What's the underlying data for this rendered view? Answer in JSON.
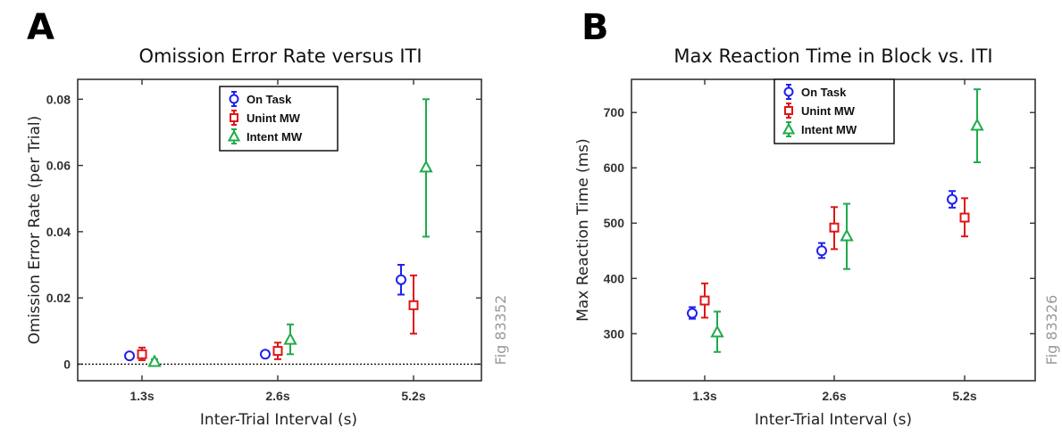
{
  "chart_data": [
    {
      "type": "scatter",
      "panel_label": "A",
      "title": "Omission Error Rate versus ITI",
      "xlabel": "Inter-Trial Interval (s)",
      "ylabel": "Omission Error Rate (per Trial)",
      "categories": [
        "1.3s",
        "2.6s",
        "5.2s"
      ],
      "ylim": [
        -0.005,
        0.086
      ],
      "yticks": [
        0,
        0.02,
        0.04,
        0.06,
        0.08
      ],
      "ytick_labels": [
        "0",
        "0.02",
        "0.04",
        "0.06",
        "0.08"
      ],
      "reference_line": 0,
      "legend_position": "top-center",
      "figure_id": "Fig 83352",
      "series": [
        {
          "name": "On Task",
          "color": "#2020ee",
          "marker": "circle",
          "values": [
            0.0025,
            0.003,
            0.0255
          ],
          "err_low": [
            0.0018,
            0.0022,
            0.021
          ],
          "err_high": [
            0.0032,
            0.0038,
            0.03
          ]
        },
        {
          "name": "Unint MW",
          "color": "#e01515",
          "marker": "square",
          "values": [
            0.003,
            0.004,
            0.0178
          ],
          "err_low": [
            0.0012,
            0.0015,
            0.0092
          ],
          "err_high": [
            0.005,
            0.0065,
            0.0268
          ]
        },
        {
          "name": "Intent MW",
          "color": "#1faa4a",
          "marker": "triangle",
          "values": [
            0.0008,
            0.0075,
            0.0595
          ],
          "err_low": [
            0.0,
            0.003,
            0.0385
          ],
          "err_high": [
            0.0015,
            0.012,
            0.08
          ]
        }
      ]
    },
    {
      "type": "scatter",
      "panel_label": "B",
      "title": "Max Reaction Time in Block vs. ITI",
      "xlabel": "Inter-Trial Interval (s)",
      "ylabel": "Max Reaction Time (ms)",
      "categories": [
        "1.3s",
        "2.6s",
        "5.2s"
      ],
      "ylim": [
        215,
        760
      ],
      "yticks": [
        300,
        400,
        500,
        600,
        700
      ],
      "ytick_labels": [
        "300",
        "400",
        "500",
        "600",
        "700"
      ],
      "legend_position": "top-center",
      "figure_id": "Fig 83326",
      "series": [
        {
          "name": "On Task",
          "color": "#2020ee",
          "marker": "circle",
          "values": [
            337,
            450,
            543
          ],
          "err_low": [
            327,
            437,
            528
          ],
          "err_high": [
            348,
            464,
            558
          ]
        },
        {
          "name": "Unint MW",
          "color": "#e01515",
          "marker": "square",
          "values": [
            360,
            492,
            510
          ],
          "err_low": [
            329,
            453,
            476
          ],
          "err_high": [
            391,
            529,
            545
          ]
        },
        {
          "name": "Intent MW",
          "color": "#1faa4a",
          "marker": "triangle",
          "values": [
            303,
            477,
            677
          ],
          "err_low": [
            267,
            417,
            610
          ],
          "err_high": [
            340,
            535,
            742
          ]
        }
      ]
    }
  ]
}
